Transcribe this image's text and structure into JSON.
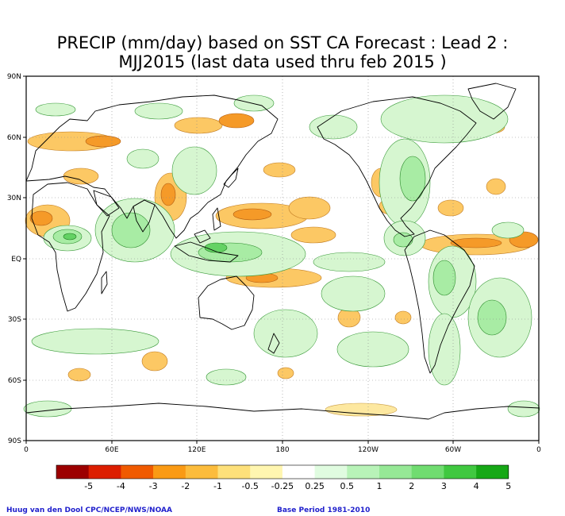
{
  "title": {
    "line1": "PRECIP (mm/day) based on SST CA Forecast : Lead 2 :",
    "line2": "MJJ2015 (last data used thru feb 2015 )"
  },
  "axes": {
    "lat_labels": [
      "90N",
      "60N",
      "30N",
      "EQ",
      "30S",
      "60S",
      "90S"
    ],
    "lon_labels": [
      "0",
      "60E",
      "120E",
      "180",
      "120W",
      "60W",
      "0"
    ]
  },
  "colorbar": {
    "labels": [
      "-5",
      "-4",
      "-3",
      "-2",
      "-1",
      "-0.5",
      "-0.25",
      "0.25",
      "0.5",
      "1",
      "2",
      "3",
      "4",
      "5"
    ],
    "colors": [
      "#9c0000",
      "#dc1e00",
      "#f05a00",
      "#fa9a14",
      "#fcbc3c",
      "#fde07a",
      "#fff6b0",
      "#ffffff",
      "#e0fce0",
      "#b8f3b8",
      "#96e896",
      "#70dc70",
      "#40c840",
      "#16a816"
    ]
  },
  "credits": {
    "left": "Huug van den Dool CPC/NCEP/NWS/NOAA",
    "right": "Base Period 1981-2010"
  },
  "colors": {
    "wet_light": "#d6f6d0",
    "wet_mid": "#a8eca4",
    "wet_strong": "#64d264",
    "dry_light": "#fde8a0",
    "dry_mid": "#fcc864",
    "dry_strong": "#f59a28",
    "coast": "#000000"
  }
}
